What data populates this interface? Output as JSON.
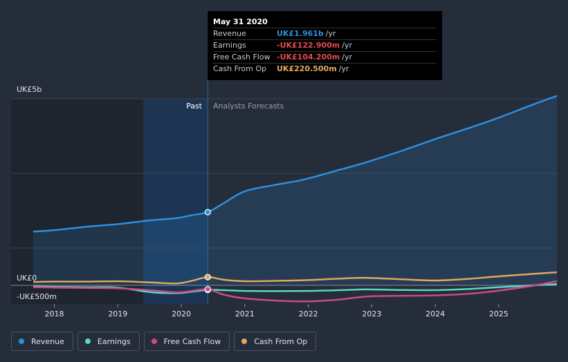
{
  "chart_data": {
    "type": "line",
    "y_axis": {
      "top_label": "UK£5b",
      "zero_label": "UK£0",
      "bottom_label": "-UK£500m",
      "ylim": [
        -500,
        5000
      ],
      "unit": "UK£m"
    },
    "x_ticks": [
      "2018",
      "2019",
      "2020",
      "2021",
      "2022",
      "2023",
      "2024",
      "2025"
    ],
    "x_range": [
      2017.667,
      2025.917
    ],
    "divider_x": 2020.417,
    "divider_labels": {
      "past": "Past",
      "forecast": "Analysts Forecasts"
    },
    "series": [
      {
        "name": "Revenue",
        "color": "#2b90e0",
        "points": [
          [
            2017.667,
            1440
          ],
          [
            2018.0,
            1480
          ],
          [
            2018.5,
            1570
          ],
          [
            2019.0,
            1640
          ],
          [
            2019.5,
            1740
          ],
          [
            2019.917,
            1800
          ],
          [
            2020.167,
            1880
          ],
          [
            2020.417,
            1961
          ],
          [
            2020.667,
            2200
          ],
          [
            2021.0,
            2520
          ],
          [
            2021.5,
            2700
          ],
          [
            2021.917,
            2830
          ],
          [
            2022.5,
            3100
          ],
          [
            2022.917,
            3300
          ],
          [
            2023.5,
            3620
          ],
          [
            2024.0,
            3920
          ],
          [
            2024.5,
            4200
          ],
          [
            2024.917,
            4440
          ],
          [
            2025.5,
            4820
          ],
          [
            2025.917,
            5080
          ]
        ]
      },
      {
        "name": "Earnings",
        "color": "#5ad8c8",
        "points": [
          [
            2017.667,
            -30
          ],
          [
            2018.0,
            -40
          ],
          [
            2018.5,
            -50
          ],
          [
            2019.0,
            -60
          ],
          [
            2019.5,
            -180
          ],
          [
            2019.917,
            -210
          ],
          [
            2020.167,
            -170
          ],
          [
            2020.417,
            -123
          ],
          [
            2020.667,
            -130
          ],
          [
            2021.0,
            -150
          ],
          [
            2021.5,
            -155
          ],
          [
            2022.0,
            -150
          ],
          [
            2022.5,
            -130
          ],
          [
            2022.917,
            -110
          ],
          [
            2023.5,
            -125
          ],
          [
            2024.0,
            -130
          ],
          [
            2024.5,
            -100
          ],
          [
            2025.0,
            -50
          ],
          [
            2025.917,
            30
          ]
        ]
      },
      {
        "name": "Free Cash Flow",
        "color": "#cc4a88",
        "points": [
          [
            2017.667,
            -50
          ],
          [
            2018.0,
            -60
          ],
          [
            2018.5,
            -70
          ],
          [
            2019.0,
            -80
          ],
          [
            2019.5,
            -130
          ],
          [
            2019.917,
            -190
          ],
          [
            2020.167,
            -150
          ],
          [
            2020.417,
            -104
          ],
          [
            2020.667,
            -250
          ],
          [
            2021.0,
            -350
          ],
          [
            2021.5,
            -410
          ],
          [
            2022.0,
            -430
          ],
          [
            2022.5,
            -380
          ],
          [
            2022.917,
            -300
          ],
          [
            2023.5,
            -280
          ],
          [
            2024.0,
            -270
          ],
          [
            2024.5,
            -230
          ],
          [
            2024.917,
            -160
          ],
          [
            2025.5,
            -20
          ],
          [
            2025.917,
            110
          ]
        ]
      },
      {
        "name": "Cash From Op",
        "color": "#e0a860",
        "points": [
          [
            2017.667,
            90
          ],
          [
            2018.0,
            100
          ],
          [
            2018.5,
            100
          ],
          [
            2019.0,
            110
          ],
          [
            2019.5,
            80
          ],
          [
            2019.917,
            50
          ],
          [
            2020.167,
            120
          ],
          [
            2020.417,
            221
          ],
          [
            2020.667,
            150
          ],
          [
            2021.0,
            110
          ],
          [
            2021.5,
            120
          ],
          [
            2022.0,
            140
          ],
          [
            2022.5,
            180
          ],
          [
            2022.917,
            200
          ],
          [
            2023.5,
            160
          ],
          [
            2024.0,
            130
          ],
          [
            2024.5,
            170
          ],
          [
            2024.917,
            230
          ],
          [
            2025.5,
            300
          ],
          [
            2025.917,
            350
          ]
        ]
      }
    ]
  },
  "tooltip": {
    "date": "May 31 2020",
    "rows": [
      {
        "label": "Revenue",
        "value": "UK£1.961b",
        "unit": "/yr",
        "color": "#2b90e0"
      },
      {
        "label": "Earnings",
        "value": "-UK£122.900m",
        "unit": "/yr",
        "color": "#e44b4b"
      },
      {
        "label": "Free Cash Flow",
        "value": "-UK£104.200m",
        "unit": "/yr",
        "color": "#e44b4b"
      },
      {
        "label": "Cash From Op",
        "value": "UK£220.500m",
        "unit": "/yr",
        "color": "#e0a860"
      }
    ]
  },
  "legend": [
    {
      "label": "Revenue",
      "color": "#2b90e0"
    },
    {
      "label": "Earnings",
      "color": "#5ad8c8"
    },
    {
      "label": "Free Cash Flow",
      "color": "#cc4a88"
    },
    {
      "label": "Cash From Op",
      "color": "#e0a860"
    }
  ]
}
